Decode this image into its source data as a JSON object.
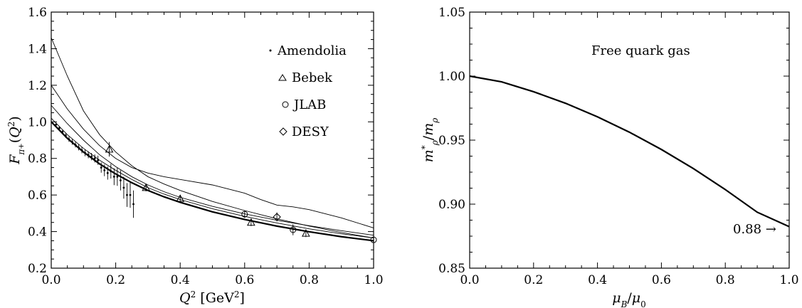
{
  "chart_data": [
    {
      "type": "scatter",
      "xlabel": "Q² [GeV²]",
      "ylabel": "F_π⁺(Q²)",
      "xlim": [
        0.0,
        1.0
      ],
      "ylim": [
        0.2,
        1.6
      ],
      "x_ticks": [
        "0.0",
        "0.2",
        "0.4",
        "0.6",
        "0.8",
        "1.0"
      ],
      "y_ticks": [
        "0.2",
        "0.4",
        "0.6",
        "0.8",
        "1.0",
        "1.2",
        "1.4",
        "1.6"
      ],
      "legend_position": "top-right",
      "legend": [
        "Amendolia",
        "Bebek",
        "JLAB",
        "DESY"
      ],
      "series": [
        {
          "name": "Amendolia",
          "marker": "dot",
          "points": [
            [
              0.015,
              0.985,
              0.01
            ],
            [
              0.025,
              0.965,
              0.012
            ],
            [
              0.035,
              0.945,
              0.013
            ],
            [
              0.045,
              0.925,
              0.013
            ],
            [
              0.055,
              0.905,
              0.014
            ],
            [
              0.065,
              0.89,
              0.015
            ],
            [
              0.075,
              0.875,
              0.015
            ],
            [
              0.085,
              0.86,
              0.016
            ],
            [
              0.095,
              0.845,
              0.017
            ],
            [
              0.105,
              0.83,
              0.018
            ],
            [
              0.115,
              0.82,
              0.019
            ],
            [
              0.125,
              0.81,
              0.02
            ],
            [
              0.135,
              0.8,
              0.022
            ],
            [
              0.145,
              0.79,
              0.025
            ],
            [
              0.155,
              0.75,
              0.028
            ],
            [
              0.165,
              0.735,
              0.032
            ],
            [
              0.175,
              0.72,
              0.036
            ],
            [
              0.185,
              0.73,
              0.04
            ],
            [
              0.195,
              0.7,
              0.046
            ],
            [
              0.205,
              0.7,
              0.05
            ],
            [
              0.215,
              0.68,
              0.055
            ],
            [
              0.225,
              0.64,
              0.06
            ],
            [
              0.235,
              0.6,
              0.065
            ],
            [
              0.245,
              0.6,
              0.07
            ],
            [
              0.255,
              0.55,
              0.075
            ]
          ]
        },
        {
          "name": "Bebek",
          "marker": "triangle",
          "points": [
            [
              0.18,
              0.85,
              0.04
            ],
            [
              0.294,
              0.64,
              0.02
            ],
            [
              0.4,
              0.58,
              0.02
            ],
            [
              0.62,
              0.45,
              0.02
            ],
            [
              0.79,
              0.39,
              0.02
            ]
          ]
        },
        {
          "name": "JLAB",
          "marker": "circle",
          "points": [
            [
              0.6,
              0.495,
              0.02
            ],
            [
              0.75,
              0.41,
              0.03
            ],
            [
              1.0,
              0.355,
              0.015
            ]
          ]
        },
        {
          "name": "DESY",
          "marker": "diamond",
          "points": [
            [
              0.7,
              0.48,
              0.025
            ]
          ]
        },
        {
          "marker": "none",
          "role": "curve-thick",
          "points": [
            [
              0.0,
              1.0
            ],
            [
              0.05,
              0.91
            ],
            [
              0.1,
              0.835
            ],
            [
              0.15,
              0.77
            ],
            [
              0.2,
              0.715
            ],
            [
              0.25,
              0.667
            ],
            [
              0.3,
              0.625
            ],
            [
              0.35,
              0.59
            ],
            [
              0.4,
              0.56
            ],
            [
              0.5,
              0.508
            ],
            [
              0.6,
              0.466
            ],
            [
              0.7,
              0.43
            ],
            [
              0.8,
              0.399
            ],
            [
              0.9,
              0.372
            ],
            [
              1.0,
              0.35
            ]
          ]
        },
        {
          "marker": "none",
          "role": "curve",
          "points": [
            [
              0.0,
              1.02
            ],
            [
              0.05,
              0.93
            ],
            [
              0.1,
              0.855
            ],
            [
              0.15,
              0.79
            ],
            [
              0.2,
              0.735
            ],
            [
              0.25,
              0.685
            ],
            [
              0.3,
              0.64
            ],
            [
              0.35,
              0.605
            ],
            [
              0.4,
              0.575
            ],
            [
              0.5,
              0.525
            ],
            [
              0.6,
              0.483
            ],
            [
              0.7,
              0.447
            ],
            [
              0.8,
              0.415
            ],
            [
              0.9,
              0.388
            ],
            [
              1.0,
              0.365
            ]
          ]
        },
        {
          "marker": "none",
          "role": "curve",
          "points": [
            [
              0.0,
              1.09
            ],
            [
              0.05,
              0.99
            ],
            [
              0.1,
              0.9
            ],
            [
              0.15,
              0.82
            ],
            [
              0.2,
              0.755
            ],
            [
              0.25,
              0.7
            ],
            [
              0.3,
              0.655
            ],
            [
              0.35,
              0.618
            ],
            [
              0.4,
              0.587
            ],
            [
              0.5,
              0.538
            ],
            [
              0.6,
              0.497
            ],
            [
              0.7,
              0.462
            ],
            [
              0.8,
              0.432
            ],
            [
              0.9,
              0.405
            ],
            [
              1.0,
              0.38
            ]
          ]
        },
        {
          "marker": "none",
          "role": "curve",
          "points": [
            [
              0.0,
              1.2
            ],
            [
              0.05,
              1.07
            ],
            [
              0.1,
              0.96
            ],
            [
              0.15,
              0.87
            ],
            [
              0.2,
              0.8
            ],
            [
              0.25,
              0.75
            ],
            [
              0.3,
              0.72
            ],
            [
              0.35,
              0.7
            ],
            [
              0.4,
              0.685
            ],
            [
              0.5,
              0.655
            ],
            [
              0.6,
              0.61
            ],
            [
              0.65,
              0.575
            ],
            [
              0.7,
              0.545
            ],
            [
              0.75,
              0.535
            ],
            [
              0.8,
              0.52
            ],
            [
              0.9,
              0.475
            ],
            [
              1.0,
              0.42
            ]
          ]
        },
        {
          "marker": "none",
          "role": "curve",
          "points": [
            [
              0.0,
              1.46
            ],
            [
              0.05,
              1.25
            ],
            [
              0.1,
              1.06
            ],
            [
              0.15,
              0.93
            ],
            [
              0.2,
              0.835
            ],
            [
              0.25,
              0.76
            ],
            [
              0.3,
              0.7
            ],
            [
              0.35,
              0.66
            ],
            [
              0.4,
              0.625
            ],
            [
              0.5,
              0.565
            ],
            [
              0.6,
              0.515
            ],
            [
              0.7,
              0.47
            ],
            [
              0.8,
              0.43
            ],
            [
              0.9,
              0.395
            ],
            [
              1.0,
              0.365
            ]
          ]
        }
      ]
    },
    {
      "type": "line",
      "xlabel": "μ_B/μ₀",
      "ylabel": "m*_ρ/m_ρ",
      "xlim": [
        0.0,
        1.0
      ],
      "ylim": [
        0.85,
        1.05
      ],
      "x_ticks": [
        "0.0",
        "0.2",
        "0.4",
        "0.6",
        "0.8",
        "1.0"
      ],
      "y_ticks": [
        "0.85",
        "0.90",
        "0.95",
        "1.00",
        "1.05"
      ],
      "annotations": [
        "Free quark gas",
        "0.88 →"
      ],
      "series": [
        {
          "points": [
            [
              0.0,
              1.0
            ],
            [
              0.1,
              0.9955
            ],
            [
              0.2,
              0.9878
            ],
            [
              0.3,
              0.9788
            ],
            [
              0.4,
              0.9682
            ],
            [
              0.5,
              0.9562
            ],
            [
              0.6,
              0.9427
            ],
            [
              0.7,
              0.9278
            ],
            [
              0.8,
              0.9114
            ],
            [
              0.9,
              0.8937
            ],
            [
              1.0,
              0.8824
            ]
          ]
        }
      ]
    }
  ]
}
